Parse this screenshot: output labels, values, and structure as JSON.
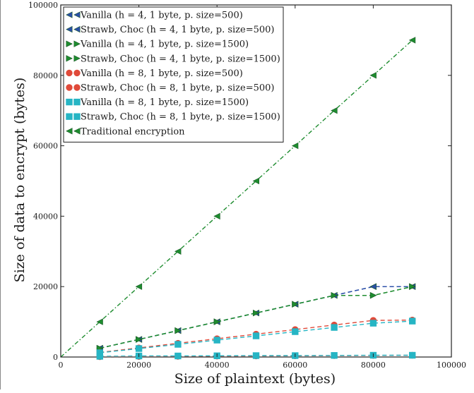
{
  "chart_data": {
    "type": "line",
    "title": "",
    "xlabel": "Size of plaintext (bytes)",
    "ylabel": "Size of data to encrypt (bytes)",
    "xlim": [
      0,
      100000
    ],
    "ylim": [
      0,
      100000
    ],
    "x_ticks": [
      "0",
      "20000",
      "40000",
      "60000",
      "80000",
      "100000"
    ],
    "y_ticks": [
      "0",
      "20000",
      "40000",
      "60000",
      "80000",
      "100000"
    ],
    "grid": false,
    "legend_position": "top-left",
    "x": [
      10000,
      20000,
      30000,
      40000,
      50000,
      60000,
      70000,
      80000,
      90000
    ],
    "series": [
      {
        "name": "Vanilla (h = 4, 1 byte, p. size=500)",
        "color": "#2b4fa8",
        "marker": "triangle-left",
        "linestyle": "dashed",
        "values": [
          2500,
          5000,
          7500,
          10000,
          12500,
          15000,
          17500,
          20000,
          20000
        ]
      },
      {
        "name": "Strawb, Choc (h = 4, 1 byte, p. size=500)",
        "color": "#2b4fa8",
        "marker": "triangle-left",
        "linestyle": "dashed",
        "values": [
          2500,
          5000,
          7500,
          10000,
          12500,
          15000,
          17500,
          20000,
          20000
        ]
      },
      {
        "name": "Vanilla (h = 4, 1 byte, p. size=1500)",
        "color": "#1e8c2f",
        "marker": "triangle-right",
        "linestyle": "dashed",
        "values": [
          2500,
          5000,
          7500,
          10000,
          12500,
          15000,
          17500,
          17500,
          20000
        ]
      },
      {
        "name": "Strawb, Choc (h = 4, 1 byte, p. size=1500)",
        "color": "#1e8c2f",
        "marker": "triangle-right",
        "linestyle": "dashed",
        "values": [
          2500,
          5000,
          7500,
          10000,
          12500,
          15000,
          17500,
          17500,
          20000
        ]
      },
      {
        "name": "Vanilla (h = 8, 1 byte, p. size=500)",
        "color": "#e04a3a",
        "marker": "circle",
        "linestyle": "dashed",
        "values": [
          1300,
          2600,
          3900,
          5200,
          6500,
          7800,
          9100,
          10400,
          10500
        ]
      },
      {
        "name": "Strawb, Choc (h = 8, 1 byte, p. size=500)",
        "color": "#e04a3a",
        "marker": "circle",
        "linestyle": "dashed",
        "values": [
          100,
          150,
          200,
          250,
          300,
          350,
          400,
          450,
          500
        ]
      },
      {
        "name": "Vanilla (h = 8, 1 byte, p. size=1500)",
        "color": "#26b5c4",
        "marker": "square",
        "linestyle": "dashed",
        "values": [
          1200,
          2400,
          3600,
          4800,
          6000,
          7200,
          8400,
          9600,
          10200
        ]
      },
      {
        "name": "Strawb, Choc (h = 8, 1 byte, p. size=1500)",
        "color": "#26b5c4",
        "marker": "square",
        "linestyle": "dashed",
        "values": [
          200,
          300,
          300,
          350,
          400,
          400,
          450,
          500,
          500
        ]
      },
      {
        "name": "Traditional encryption",
        "color": "#1e8c2f",
        "marker": "triangle-left",
        "linestyle": "dashdot",
        "values": [
          10000,
          20000,
          30000,
          40000,
          50000,
          60000,
          70000,
          80000,
          90000
        ]
      }
    ]
  }
}
